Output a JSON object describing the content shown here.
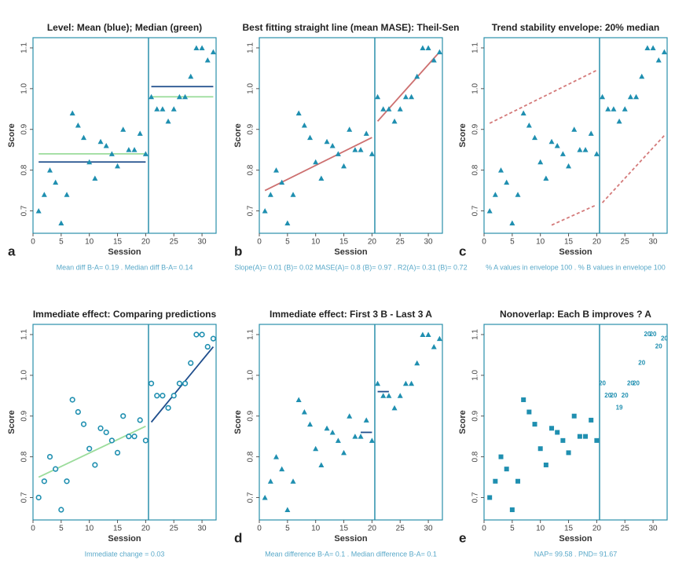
{
  "chart_data": [
    {
      "type": "scatter",
      "title": "Level: Mean (blue); Median (green)",
      "x_label": "Session",
      "y_label": "Score",
      "panel_label": "a",
      "caption": "Mean diff B-A= 0.19 . Median diff B-A= 0.14",
      "marker": "triangle",
      "color": "#1f8fb0",
      "x": [
        1,
        2,
        3,
        4,
        5,
        6,
        7,
        8,
        9,
        10,
        11,
        12,
        13,
        14,
        15,
        16,
        17,
        18,
        19,
        20,
        21,
        22,
        23,
        24,
        25,
        26,
        27,
        28,
        29,
        30,
        31,
        32
      ],
      "values": [
        0.7,
        0.74,
        0.8,
        0.77,
        0.67,
        0.74,
        0.94,
        0.91,
        0.88,
        0.82,
        0.78,
        0.87,
        0.86,
        0.84,
        0.81,
        0.9,
        0.85,
        0.85,
        0.89,
        0.84,
        0.98,
        0.95,
        0.95,
        0.92,
        0.95,
        0.98,
        0.98,
        1.03,
        1.1,
        1.1,
        1.07,
        1.09
      ],
      "phase_change": 20.5,
      "xlim": [
        0,
        32.5
      ],
      "ylim": [
        0.645,
        1.125
      ],
      "xticks": [
        0,
        5,
        10,
        15,
        20,
        25,
        30
      ],
      "yticks": [
        0.7,
        0.8,
        0.9,
        {
          "value": 1,
          "label": "1.0"
        },
        1.1
      ],
      "overlays": [
        {
          "x": [
            1,
            20
          ],
          "y": [
            0.84,
            0.84
          ],
          "color": "#9bdc9b"
        },
        {
          "x": [
            1,
            20
          ],
          "y": [
            0.82,
            0.82
          ],
          "color": "#1f4e8c"
        },
        {
          "x": [
            21,
            32
          ],
          "y": [
            0.98,
            0.98
          ],
          "color": "#9bdc9b"
        },
        {
          "x": [
            21,
            32
          ],
          "y": [
            1.005,
            1.005
          ],
          "color": "#1f4e8c"
        }
      ]
    },
    {
      "type": "scatter",
      "title": "Best fitting straight line (mean MASE): Theil-Sen",
      "x_label": "Session",
      "y_label": "Score",
      "panel_label": "b",
      "caption": "Slope(A)= 0.01 (B)= 0.02 MASE(A)= 0.8 (B)= 0.97 . R2(A)= 0.31 (B)= 0.72",
      "marker": "triangle",
      "color": "#1f8fb0",
      "x": [
        1,
        2,
        3,
        4,
        5,
        6,
        7,
        8,
        9,
        10,
        11,
        12,
        13,
        14,
        15,
        16,
        17,
        18,
        19,
        20,
        21,
        22,
        23,
        24,
        25,
        26,
        27,
        28,
        29,
        30,
        31,
        32
      ],
      "values": [
        0.7,
        0.74,
        0.8,
        0.77,
        0.67,
        0.74,
        0.94,
        0.91,
        0.88,
        0.82,
        0.78,
        0.87,
        0.86,
        0.84,
        0.81,
        0.9,
        0.85,
        0.85,
        0.89,
        0.84,
        0.98,
        0.95,
        0.95,
        0.92,
        0.95,
        0.98,
        0.98,
        1.03,
        1.1,
        1.1,
        1.07,
        1.09
      ],
      "phase_change": 20.5,
      "xlim": [
        0,
        32.5
      ],
      "ylim": [
        0.645,
        1.125
      ],
      "xticks": [
        0,
        5,
        10,
        15,
        20,
        25,
        30
      ],
      "yticks": [
        0.7,
        0.8,
        0.9,
        {
          "value": 1,
          "label": "1.0"
        },
        1.1
      ],
      "overlays": [
        {
          "x": [
            1,
            20
          ],
          "y": [
            0.75,
            0.88
          ],
          "color": "#cd7070"
        },
        {
          "x": [
            21,
            32
          ],
          "y": [
            0.92,
            1.09
          ],
          "color": "#cd7070"
        }
      ]
    },
    {
      "type": "scatter",
      "title": "Trend stability envelope: 20% median",
      "x_label": "Session",
      "y_label": "Score",
      "panel_label": "c",
      "caption": "% A values in envelope 100 . % B values in envelope 100",
      "marker": "triangle",
      "color": "#1f8fb0",
      "x": [
        1,
        2,
        3,
        4,
        5,
        6,
        7,
        8,
        9,
        10,
        11,
        12,
        13,
        14,
        15,
        16,
        17,
        18,
        19,
        20,
        21,
        22,
        23,
        24,
        25,
        26,
        27,
        28,
        29,
        30,
        31,
        32
      ],
      "values": [
        0.7,
        0.74,
        0.8,
        0.77,
        0.67,
        0.74,
        0.94,
        0.91,
        0.88,
        0.82,
        0.78,
        0.87,
        0.86,
        0.84,
        0.81,
        0.9,
        0.85,
        0.85,
        0.89,
        0.84,
        0.98,
        0.95,
        0.95,
        0.92,
        0.95,
        0.98,
        0.98,
        1.03,
        1.1,
        1.1,
        1.07,
        1.09
      ],
      "phase_change": 20.5,
      "xlim": [
        0,
        32.5
      ],
      "ylim": [
        0.645,
        1.125
      ],
      "xticks": [
        0,
        5,
        10,
        15,
        20,
        25,
        30
      ],
      "yticks": [
        0.7,
        0.8,
        0.9,
        {
          "value": 1,
          "label": "1.0"
        },
        1.1
      ],
      "overlays": [
        {
          "x": [
            1,
            20
          ],
          "y": [
            0.915,
            1.045
          ],
          "color": "#d47a7a",
          "dashed": true
        },
        {
          "x": [
            12,
            20
          ],
          "y": [
            0.665,
            0.715
          ],
          "color": "#d47a7a",
          "dashed": true
        },
        {
          "x": [
            21,
            32
          ],
          "y": [
            0.72,
            0.885
          ],
          "color": "#d47a7a",
          "dashed": true
        }
      ]
    },
    {
      "type": "scatter",
      "title": "Immediate effect: Comparing predictions",
      "x_label": "Session",
      "y_label": "Score",
      "caption": "Immediate change = 0.03",
      "marker": "circle",
      "color": "#1f8fb0",
      "x": [
        1,
        2,
        3,
        4,
        5,
        6,
        7,
        8,
        9,
        10,
        11,
        12,
        13,
        14,
        15,
        16,
        17,
        18,
        19,
        20,
        21,
        22,
        23,
        24,
        25,
        26,
        27,
        28,
        29,
        30,
        31,
        32
      ],
      "values": [
        0.7,
        0.74,
        0.8,
        0.77,
        0.67,
        0.74,
        0.94,
        0.91,
        0.88,
        0.82,
        0.78,
        0.87,
        0.86,
        0.84,
        0.81,
        0.9,
        0.85,
        0.85,
        0.89,
        0.84,
        0.98,
        0.95,
        0.95,
        0.92,
        0.95,
        0.98,
        0.98,
        1.03,
        1.1,
        1.1,
        1.07,
        1.09
      ],
      "phase_change": 20.5,
      "xlim": [
        0,
        32.5
      ],
      "ylim": [
        0.645,
        1.125
      ],
      "xticks": [
        0,
        5,
        10,
        15,
        20,
        25,
        30
      ],
      "yticks": [
        0.7,
        0.8,
        0.9,
        {
          "value": 1,
          "label": "1.0"
        },
        1.1
      ],
      "overlays": [
        {
          "x": [
            1,
            20
          ],
          "y": [
            0.75,
            0.875
          ],
          "color": "#9bdc9b"
        },
        {
          "x": [
            21,
            32
          ],
          "y": [
            0.885,
            1.07
          ],
          "color": "#1f4e8c"
        }
      ]
    },
    {
      "type": "scatter",
      "title": "Immediate effect: First 3 B - Last 3 A",
      "x_label": "Session",
      "y_label": "Score",
      "panel_label": "d",
      "caption": "Mean difference B-A= 0.1 . Median difference B-A= 0.1",
      "marker": "triangle",
      "color": "#1f8fb0",
      "x": [
        1,
        2,
        3,
        4,
        5,
        6,
        7,
        8,
        9,
        10,
        11,
        12,
        13,
        14,
        15,
        16,
        17,
        18,
        19,
        20,
        21,
        22,
        23,
        24,
        25,
        26,
        27,
        28,
        29,
        30,
        31,
        32
      ],
      "values": [
        0.7,
        0.74,
        0.8,
        0.77,
        0.67,
        0.74,
        0.94,
        0.91,
        0.88,
        0.82,
        0.78,
        0.87,
        0.86,
        0.84,
        0.81,
        0.9,
        0.85,
        0.85,
        0.89,
        0.84,
        0.98,
        0.95,
        0.95,
        0.92,
        0.95,
        0.98,
        0.98,
        1.03,
        1.1,
        1.1,
        1.07,
        1.09
      ],
      "phase_change": 20.5,
      "xlim": [
        0,
        32.5
      ],
      "ylim": [
        0.645,
        1.125
      ],
      "xticks": [
        0,
        5,
        10,
        15,
        20,
        25,
        30
      ],
      "yticks": [
        0.7,
        0.8,
        0.9,
        {
          "value": 1,
          "label": "1.0"
        },
        1.1
      ],
      "overlays": [
        {
          "x": [
            18,
            20
          ],
          "y": [
            0.86,
            0.86
          ],
          "color": "#1f4e8c"
        },
        {
          "x": [
            21,
            23
          ],
          "y": [
            0.96,
            0.96
          ],
          "color": "#1f4e8c"
        }
      ]
    },
    {
      "type": "scatter",
      "title": "Nonoverlap: Each B improves ? A",
      "x_label": "Session",
      "y_label": "Score",
      "panel_label": "e",
      "caption": "NAP= 99.58 . PND= 91.67",
      "marker": "square",
      "color": "#1f8fb0",
      "x": [
        1,
        2,
        3,
        4,
        5,
        6,
        7,
        8,
        9,
        10,
        11,
        12,
        13,
        14,
        15,
        16,
        17,
        18,
        19,
        20,
        21,
        22,
        23,
        24,
        25,
        26,
        27,
        28,
        29,
        30,
        31,
        32
      ],
      "values": [
        0.7,
        0.74,
        0.8,
        0.77,
        0.67,
        0.74,
        0.94,
        0.91,
        0.88,
        0.82,
        0.78,
        0.87,
        0.86,
        0.84,
        0.81,
        0.9,
        0.85,
        0.85,
        0.89,
        0.84,
        0.98,
        0.95,
        0.95,
        0.92,
        0.95,
        0.98,
        0.98,
        1.03,
        1.1,
        1.1,
        1.07,
        1.09
      ],
      "point_labels": [
        null,
        null,
        null,
        null,
        null,
        null,
        null,
        null,
        null,
        null,
        null,
        null,
        null,
        null,
        null,
        null,
        null,
        null,
        null,
        null,
        20,
        20,
        20,
        19,
        20,
        20,
        20,
        20,
        20,
        20,
        20,
        20
      ],
      "phase_change": 20.5,
      "xlim": [
        0,
        32.5
      ],
      "ylim": [
        0.645,
        1.125
      ],
      "xticks": [
        0,
        5,
        10,
        15,
        20,
        25,
        30
      ],
      "yticks": [
        0.7,
        0.8,
        0.9,
        {
          "value": 1,
          "label": "1.0"
        },
        1.1
      ],
      "overlays": []
    }
  ]
}
